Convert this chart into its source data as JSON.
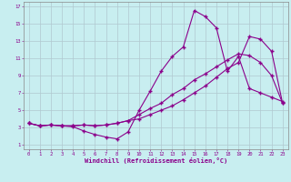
{
  "xlabel": "Windchill (Refroidissement éolien,°C)",
  "background_color": "#c8eef0",
  "line_color": "#8b008b",
  "grid_color": "#b0c8d0",
  "xlim": [
    -0.5,
    23.5
  ],
  "ylim": [
    0.5,
    17.5
  ],
  "xticks": [
    0,
    1,
    2,
    3,
    4,
    5,
    6,
    7,
    8,
    9,
    10,
    11,
    12,
    13,
    14,
    15,
    16,
    17,
    18,
    19,
    20,
    21,
    22,
    23
  ],
  "yticks": [
    1,
    3,
    5,
    7,
    9,
    11,
    13,
    15,
    17
  ],
  "line1_x": [
    0,
    1,
    2,
    3,
    4,
    5,
    6,
    7,
    8,
    9,
    10,
    11,
    12,
    13,
    14,
    15,
    16,
    17,
    18,
    19,
    20,
    21,
    22,
    23
  ],
  "line1_y": [
    3.5,
    3.2,
    3.3,
    3.2,
    3.1,
    2.6,
    2.2,
    1.9,
    1.7,
    2.5,
    5.0,
    7.2,
    9.5,
    11.2,
    12.3,
    16.5,
    15.8,
    14.5,
    9.5,
    11.2,
    7.5,
    7.0,
    6.5,
    6.0
  ],
  "line2_x": [
    0,
    1,
    2,
    3,
    4,
    5,
    6,
    7,
    8,
    9,
    10,
    11,
    12,
    13,
    14,
    15,
    16,
    17,
    18,
    19,
    20,
    21,
    22,
    23
  ],
  "line2_y": [
    3.5,
    3.2,
    3.3,
    3.2,
    3.2,
    3.3,
    3.2,
    3.3,
    3.5,
    3.8,
    4.5,
    5.2,
    5.8,
    6.8,
    7.5,
    8.5,
    9.2,
    10.0,
    10.8,
    11.5,
    11.3,
    10.5,
    9.0,
    5.8
  ],
  "line3_x": [
    0,
    1,
    2,
    3,
    4,
    5,
    6,
    7,
    8,
    9,
    10,
    11,
    12,
    13,
    14,
    15,
    16,
    17,
    18,
    19,
    20,
    21,
    22,
    23
  ],
  "line3_y": [
    3.5,
    3.2,
    3.3,
    3.2,
    3.2,
    3.3,
    3.2,
    3.3,
    3.5,
    3.8,
    4.0,
    4.5,
    5.0,
    5.5,
    6.2,
    7.0,
    7.8,
    8.8,
    9.8,
    10.5,
    13.5,
    13.2,
    11.8,
    5.8
  ]
}
